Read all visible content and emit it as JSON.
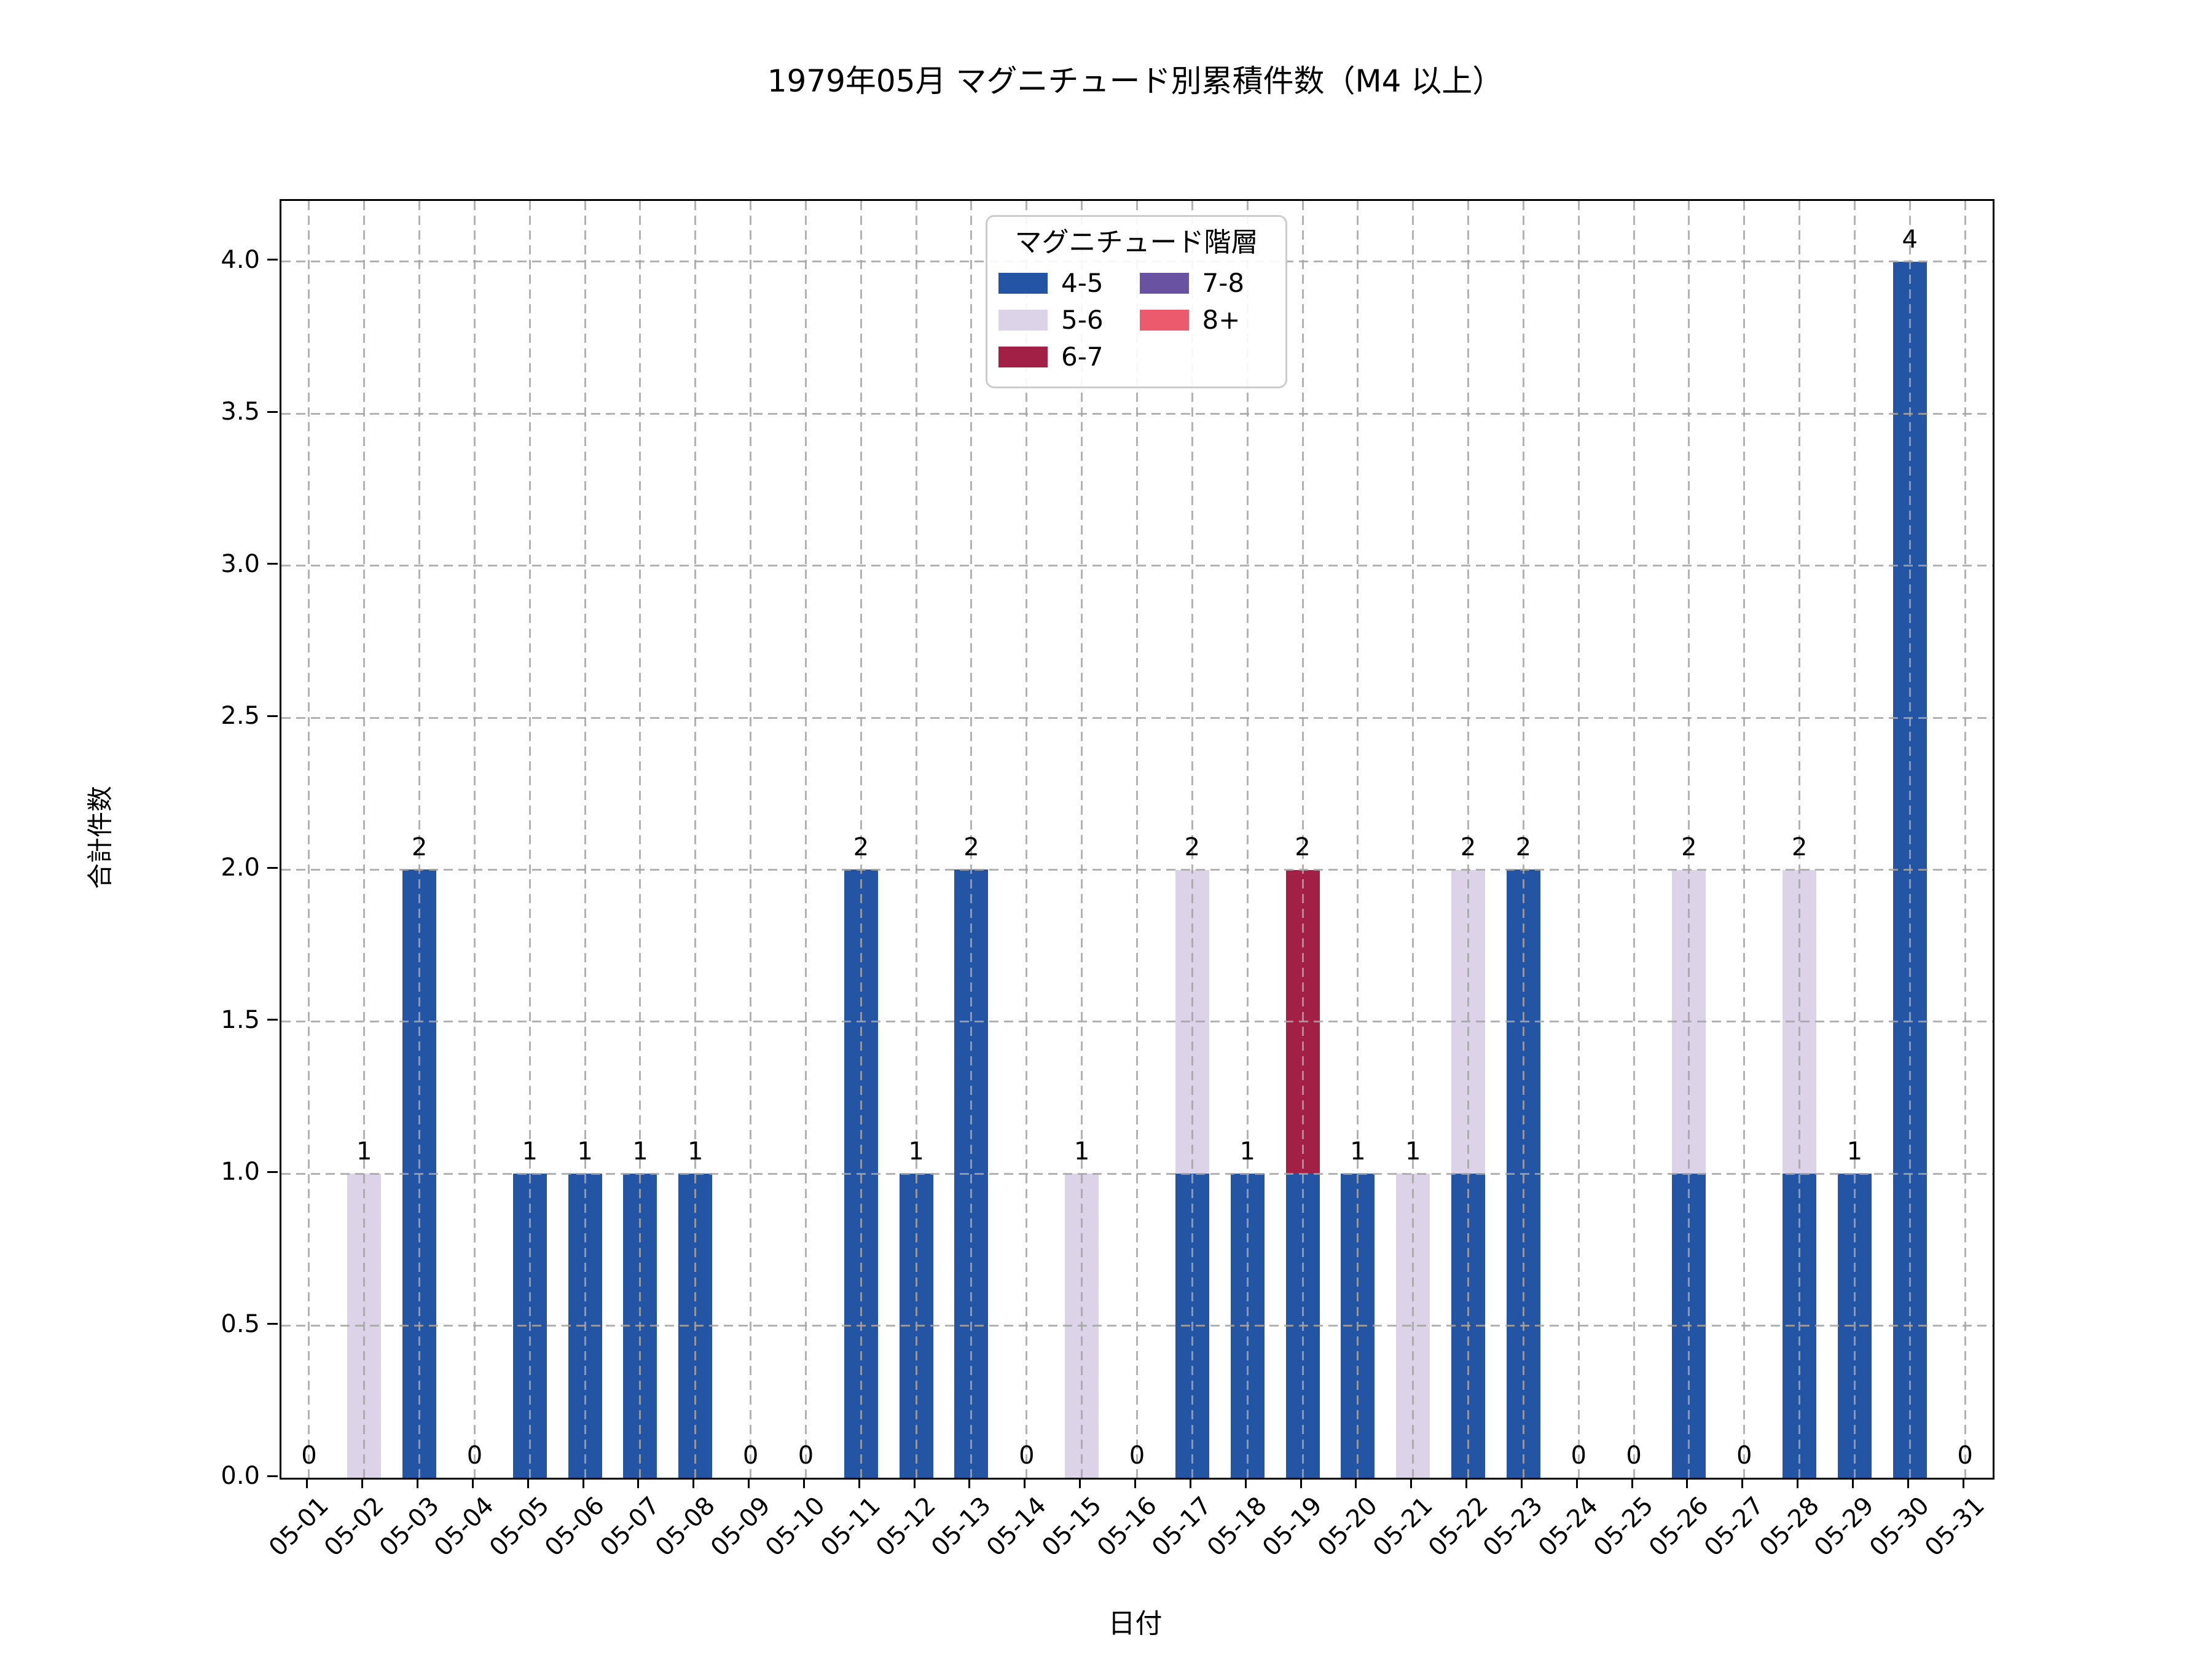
{
  "title": "1979年05月 マグニチュード別累積件数（M4 以上）",
  "chart_data": {
    "type": "bar",
    "stacked": true,
    "title": "1979年05月 マグニチュード別累積件数（M4 以上）",
    "xlabel": "日付",
    "ylabel": "合計件数",
    "categories": [
      "05-01",
      "05-02",
      "05-03",
      "05-04",
      "05-05",
      "05-06",
      "05-07",
      "05-08",
      "05-09",
      "05-10",
      "05-11",
      "05-12",
      "05-13",
      "05-14",
      "05-15",
      "05-16",
      "05-17",
      "05-18",
      "05-19",
      "05-20",
      "05-21",
      "05-22",
      "05-23",
      "05-24",
      "05-25",
      "05-26",
      "05-27",
      "05-28",
      "05-29",
      "05-30",
      "05-31"
    ],
    "series": [
      {
        "name": "4-5",
        "color": "#2355a4",
        "values": [
          0,
          0,
          2,
          0,
          1,
          1,
          1,
          1,
          0,
          0,
          2,
          1,
          2,
          0,
          0,
          0,
          1,
          1,
          1,
          1,
          0,
          1,
          2,
          0,
          0,
          1,
          0,
          1,
          1,
          4,
          0
        ]
      },
      {
        "name": "5-6",
        "color": "#ddd3e9",
        "values": [
          0,
          1,
          0,
          0,
          0,
          0,
          0,
          0,
          0,
          0,
          0,
          0,
          0,
          0,
          1,
          0,
          1,
          0,
          0,
          0,
          1,
          1,
          0,
          0,
          0,
          1,
          0,
          1,
          0,
          0,
          0
        ]
      },
      {
        "name": "6-7",
        "color": "#a21f45",
        "values": [
          0,
          0,
          0,
          0,
          0,
          0,
          0,
          0,
          0,
          0,
          0,
          0,
          0,
          0,
          0,
          0,
          0,
          0,
          1,
          0,
          0,
          0,
          0,
          0,
          0,
          0,
          0,
          0,
          0,
          0,
          0
        ]
      },
      {
        "name": "7-8",
        "color": "#6a52a2",
        "values": [
          0,
          0,
          0,
          0,
          0,
          0,
          0,
          0,
          0,
          0,
          0,
          0,
          0,
          0,
          0,
          0,
          0,
          0,
          0,
          0,
          0,
          0,
          0,
          0,
          0,
          0,
          0,
          0,
          0,
          0,
          0
        ]
      },
      {
        "name": "8+",
        "color": "#ec5b6d",
        "values": [
          0,
          0,
          0,
          0,
          0,
          0,
          0,
          0,
          0,
          0,
          0,
          0,
          0,
          0,
          0,
          0,
          0,
          0,
          0,
          0,
          0,
          0,
          0,
          0,
          0,
          0,
          0,
          0,
          0,
          0,
          0
        ]
      }
    ],
    "totals": [
      0,
      1,
      2,
      0,
      1,
      1,
      1,
      1,
      0,
      0,
      2,
      1,
      2,
      0,
      1,
      0,
      2,
      1,
      2,
      1,
      1,
      2,
      2,
      0,
      0,
      2,
      0,
      2,
      1,
      4,
      0
    ],
    "ylim": [
      0,
      4.2
    ],
    "yticks": [
      "0.0",
      "0.5",
      "1.0",
      "1.5",
      "2.0",
      "2.5",
      "3.0",
      "3.5",
      "4.0"
    ],
    "ytick_step": 0.5,
    "grid": true,
    "grid_style": "dashed",
    "legend": {
      "title": "マグニチュード階層",
      "position": "upper center",
      "columns": 2
    }
  }
}
